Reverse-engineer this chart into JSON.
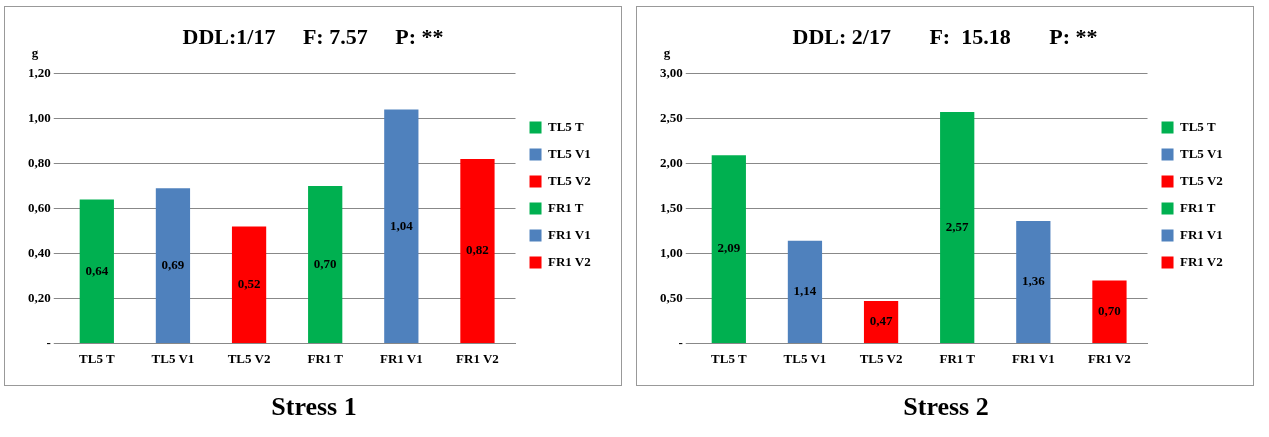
{
  "chart_data": [
    {
      "type": "bar",
      "title": "DDL:1/17     F: 7.57     P: **",
      "ylabel": "g",
      "categories": [
        "TL5 T",
        "TL5 V1",
        "TL5 V2",
        "FR1 T",
        "FR1 V1",
        "FR1 V2"
      ],
      "series": [
        {
          "name": "TL5 T",
          "color": "#00b050",
          "values": [
            0.64,
            null,
            null,
            null,
            null,
            null
          ],
          "value_labels": [
            "0,64",
            null,
            null,
            null,
            null,
            null
          ]
        },
        {
          "name": "TL5 V1",
          "color": "#4f81bd",
          "values": [
            null,
            0.69,
            null,
            null,
            null,
            null
          ],
          "value_labels": [
            null,
            "0,69",
            null,
            null,
            null,
            null
          ]
        },
        {
          "name": "TL5 V2",
          "color": "#ff0000",
          "values": [
            null,
            null,
            0.52,
            null,
            null,
            null
          ],
          "value_labels": [
            null,
            null,
            "0,52",
            null,
            null,
            null
          ]
        },
        {
          "name": "FR1 T",
          "color": "#00b050",
          "values": [
            null,
            null,
            null,
            0.7,
            null,
            null
          ],
          "value_labels": [
            null,
            null,
            null,
            "0,70",
            null,
            null
          ]
        },
        {
          "name": "FR1 V1",
          "color": "#4f81bd",
          "values": [
            null,
            null,
            null,
            null,
            1.04,
            null
          ],
          "value_labels": [
            null,
            null,
            null,
            null,
            "1,04",
            null
          ]
        },
        {
          "name": "FR1 V2",
          "color": "#ff0000",
          "values": [
            null,
            null,
            null,
            null,
            null,
            0.82
          ],
          "value_labels": [
            null,
            null,
            null,
            null,
            null,
            "0,82"
          ]
        }
      ],
      "ylim": [
        0,
        1.2
      ],
      "yticks": [
        {
          "value": 0,
          "label": "-"
        },
        {
          "value": 0.2,
          "label": "0,20"
        },
        {
          "value": 0.4,
          "label": "0,40"
        },
        {
          "value": 0.6,
          "label": "0,60"
        },
        {
          "value": 0.8,
          "label": "0,80"
        },
        {
          "value": 1.0,
          "label": "1,00"
        },
        {
          "value": 1.2,
          "label": "1,20"
        }
      ],
      "grid": "y",
      "legend": "right",
      "annotations": [
        "Stress 1"
      ]
    },
    {
      "type": "bar",
      "title": "DDL: 2/17       F:  15.18       P: **",
      "ylabel": "g",
      "categories": [
        "TL5 T",
        "TL5 V1",
        "TL5 V2",
        "FR1 T",
        "FR1 V1",
        "FR1 V2"
      ],
      "series": [
        {
          "name": "TL5 T",
          "color": "#00b050",
          "values": [
            2.09,
            null,
            null,
            null,
            null,
            null
          ],
          "value_labels": [
            "2,09",
            null,
            null,
            null,
            null,
            null
          ]
        },
        {
          "name": "TL5 V1",
          "color": "#4f81bd",
          "values": [
            null,
            1.14,
            null,
            null,
            null,
            null
          ],
          "value_labels": [
            null,
            "1,14",
            null,
            null,
            null,
            null
          ]
        },
        {
          "name": "TL5 V2",
          "color": "#ff0000",
          "values": [
            null,
            null,
            0.47,
            null,
            null,
            null
          ],
          "value_labels": [
            null,
            null,
            "0,47",
            null,
            null,
            null
          ]
        },
        {
          "name": "FR1 T",
          "color": "#00b050",
          "values": [
            null,
            null,
            null,
            2.57,
            null,
            null
          ],
          "value_labels": [
            null,
            null,
            null,
            "2,57",
            null,
            null
          ]
        },
        {
          "name": "FR1 V1",
          "color": "#4f81bd",
          "values": [
            null,
            null,
            null,
            null,
            1.36,
            null
          ],
          "value_labels": [
            null,
            null,
            null,
            null,
            "1,36",
            null
          ]
        },
        {
          "name": "FR1 V2",
          "color": "#ff0000",
          "values": [
            null,
            null,
            null,
            null,
            null,
            0.7
          ],
          "value_labels": [
            null,
            null,
            null,
            null,
            null,
            "0,70"
          ]
        }
      ],
      "ylim": [
        0,
        3
      ],
      "yticks": [
        {
          "value": 0,
          "label": "-"
        },
        {
          "value": 0.5,
          "label": "0,50"
        },
        {
          "value": 1.0,
          "label": "1,00"
        },
        {
          "value": 1.5,
          "label": "1,50"
        },
        {
          "value": 2.0,
          "label": "2,00"
        },
        {
          "value": 2.5,
          "label": "2,50"
        },
        {
          "value": 3.0,
          "label": "3,00"
        }
      ],
      "grid": "y",
      "legend": "right",
      "annotations": [
        "Stress 2"
      ]
    }
  ]
}
